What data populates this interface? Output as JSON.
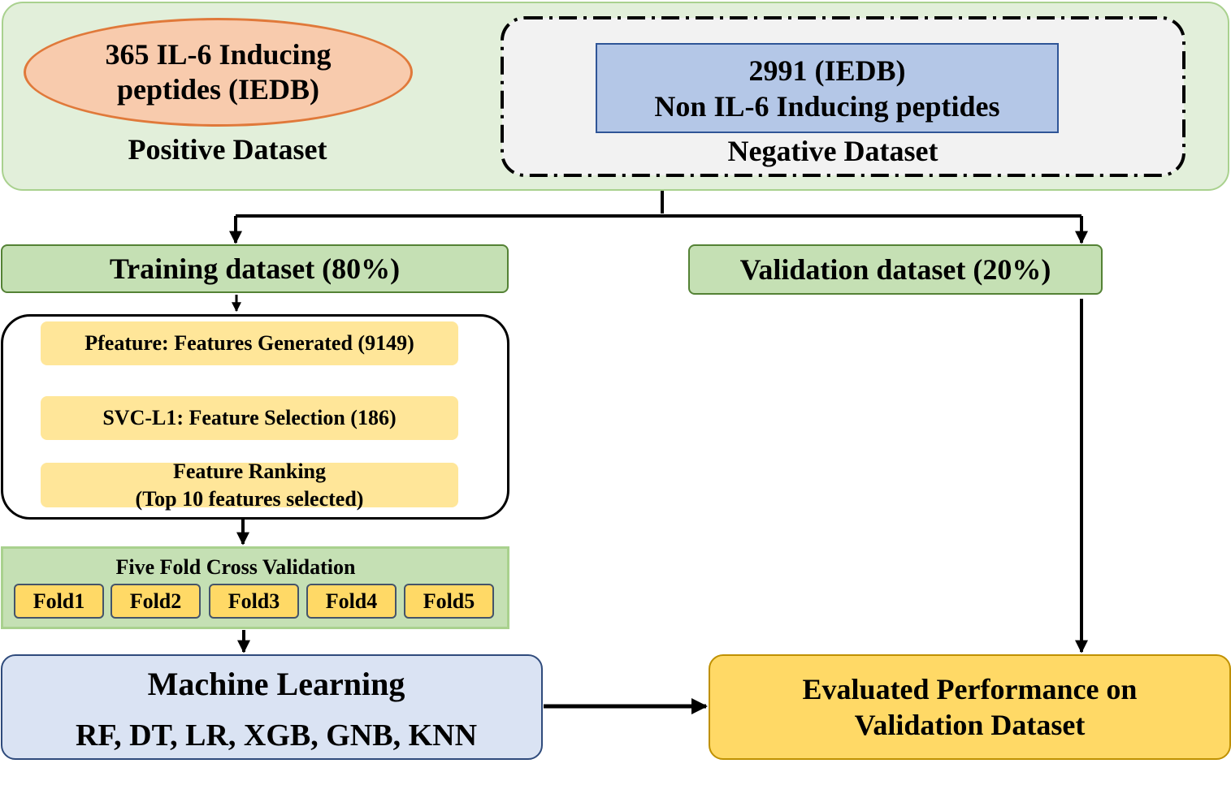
{
  "dataset_panel": {
    "positive_ellipse_lines": [
      "365 IL-6 Inducing",
      "peptides (IEDB)"
    ],
    "positive_label": "Positive Dataset",
    "negative_box_lines": [
      "2991 (IEDB)",
      "Non IL-6 Inducing peptides"
    ],
    "negative_label": "Negative Dataset"
  },
  "split": {
    "training_label": "Training dataset (80%)",
    "validation_label": "Validation dataset (20%)"
  },
  "feature_steps": {
    "pfeature": "Pfeature: Features Generated (9149)",
    "svc": "SVC-L1: Feature Selection (186)",
    "ranking_lines": [
      "Feature Ranking",
      "(Top 10 features selected)"
    ]
  },
  "cross_validation": {
    "title": "Five Fold Cross Validation",
    "folds": [
      "Fold1",
      "Fold2",
      "Fold3",
      "Fold4",
      "Fold5"
    ]
  },
  "machine_learning": {
    "title": "Machine Learning",
    "models": "RF, DT, LR, XGB, GNB, KNN"
  },
  "evaluation": {
    "lines": [
      "Evaluated Performance on",
      "Validation Dataset"
    ]
  },
  "colors": {
    "panel_fill": "#e2efda",
    "ellipse_fill": "#f8cbad",
    "negative_fill": "#b4c7e7",
    "green_box_fill": "#c5e0b4",
    "step_fill": "#ffe699",
    "fold_fill": "#ffd966",
    "ml_fill": "#dae3f3",
    "eval_fill": "#ffd966"
  }
}
